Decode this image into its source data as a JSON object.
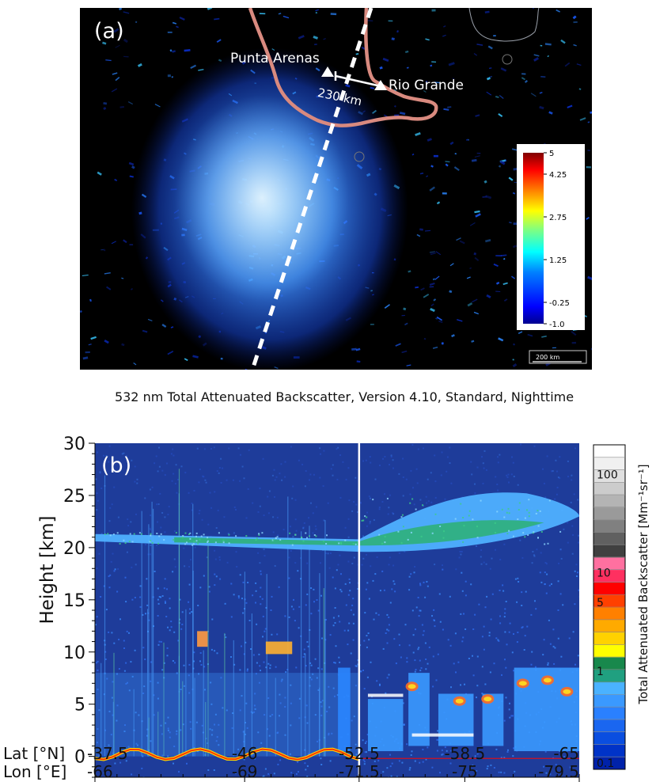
{
  "chart_data": [
    {
      "type": "map",
      "panel_label": "(a)",
      "places": [
        {
          "name": "Punta Arenas"
        },
        {
          "name": "Rio Grande"
        }
      ],
      "distance_label": "230 km",
      "scale_bar_label": "200 km",
      "colorbar": {
        "tick_labels": [
          "5",
          "4.25",
          "2.75",
          "1.25",
          "-0.25",
          "-1.0"
        ],
        "ticks": [
          5,
          4.25,
          2.75,
          1.25,
          -0.25,
          -1.0
        ],
        "range": [
          -1.0,
          5
        ],
        "colors": [
          "#00008f",
          "#0000ff",
          "#0080ff",
          "#00ffff",
          "#80ff80",
          "#ffff00",
          "#ff8000",
          "#ff0000",
          "#800000"
        ]
      }
    },
    {
      "type": "heatmap",
      "panel_label": "(b)",
      "title": "532 nm Total Attenuated Backscatter, Version 4.10, Standard, Nighttime",
      "ylabel": "Height [km]",
      "ylim": [
        -2,
        30
      ],
      "y_ticks": [
        0,
        5,
        10,
        15,
        20,
        25,
        30
      ],
      "x_row_labels": [
        "Lat [°N]",
        "Lon [°E]"
      ],
      "lat_ticks": [
        -37.5,
        -46,
        -52.5,
        -58.5,
        -65
      ],
      "lon_ticks": [
        -66,
        -69,
        -71.5,
        -75,
        -79.5
      ],
      "marker_lat": -52.5,
      "features": [
        {
          "name": "stratospheric aerosol layer",
          "lat_range": [
            -37.5,
            -65
          ],
          "height_km": [
            19.5,
            25.5
          ]
        },
        {
          "name": "surface return",
          "height_km": 0
        }
      ],
      "colorbar": {
        "label": "Total Attenuated Backscatter [Mm⁻¹sr⁻¹]",
        "tick_labels": [
          "100",
          "10",
          "5",
          "1",
          "0.1"
        ],
        "ticks": [
          100,
          10,
          5,
          1,
          0.1
        ],
        "colors": [
          "#0022aa",
          "#0033c8",
          "#0a4ee0",
          "#1a66f0",
          "#2a80ff",
          "#3a99ff",
          "#4ab2ff",
          "#20a080",
          "#18884c",
          "#ffff00",
          "#ffd200",
          "#ffaa00",
          "#ff8000",
          "#ff4000",
          "#ff0000",
          "#ff3060",
          "#ff70a0",
          "#404040",
          "#606060",
          "#808080",
          "#9a9a9a",
          "#b4b4b4",
          "#cccccc",
          "#e0e0e0",
          "#f0f0f0",
          "#ffffff"
        ]
      }
    }
  ]
}
